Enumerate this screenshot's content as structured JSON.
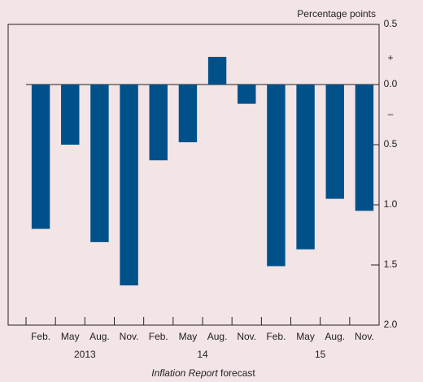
{
  "chart_data": {
    "type": "bar",
    "ylabel": "Percentage points",
    "annotations": [
      "+",
      "–"
    ],
    "categories": [
      "Feb.",
      "May",
      "Aug.",
      "Nov.",
      "Feb.",
      "May",
      "Aug.",
      "Nov.",
      "Feb.",
      "May",
      "Aug.",
      "Nov."
    ],
    "year_labels": [
      "2013",
      "14",
      "15"
    ],
    "xlabel_parts": [
      "Inflation Report",
      "forecast"
    ],
    "values": [
      -1.2,
      -0.5,
      -1.31,
      -1.67,
      -0.63,
      -0.48,
      0.23,
      -0.16,
      -1.51,
      -1.37,
      -0.95,
      -1.05
    ],
    "color": "#00518a",
    "ylim": [
      -2,
      0.5
    ],
    "yticks": [
      0.5,
      {
        "value": 0,
        "label": "0.0"
      },
      {
        "value": -0.5,
        "label": "0.5"
      },
      {
        "value": -1,
        "label": "1.0"
      },
      {
        "value": -1.5,
        "label": "1.5"
      },
      {
        "value": -2,
        "label": "2.0"
      }
    ]
  }
}
